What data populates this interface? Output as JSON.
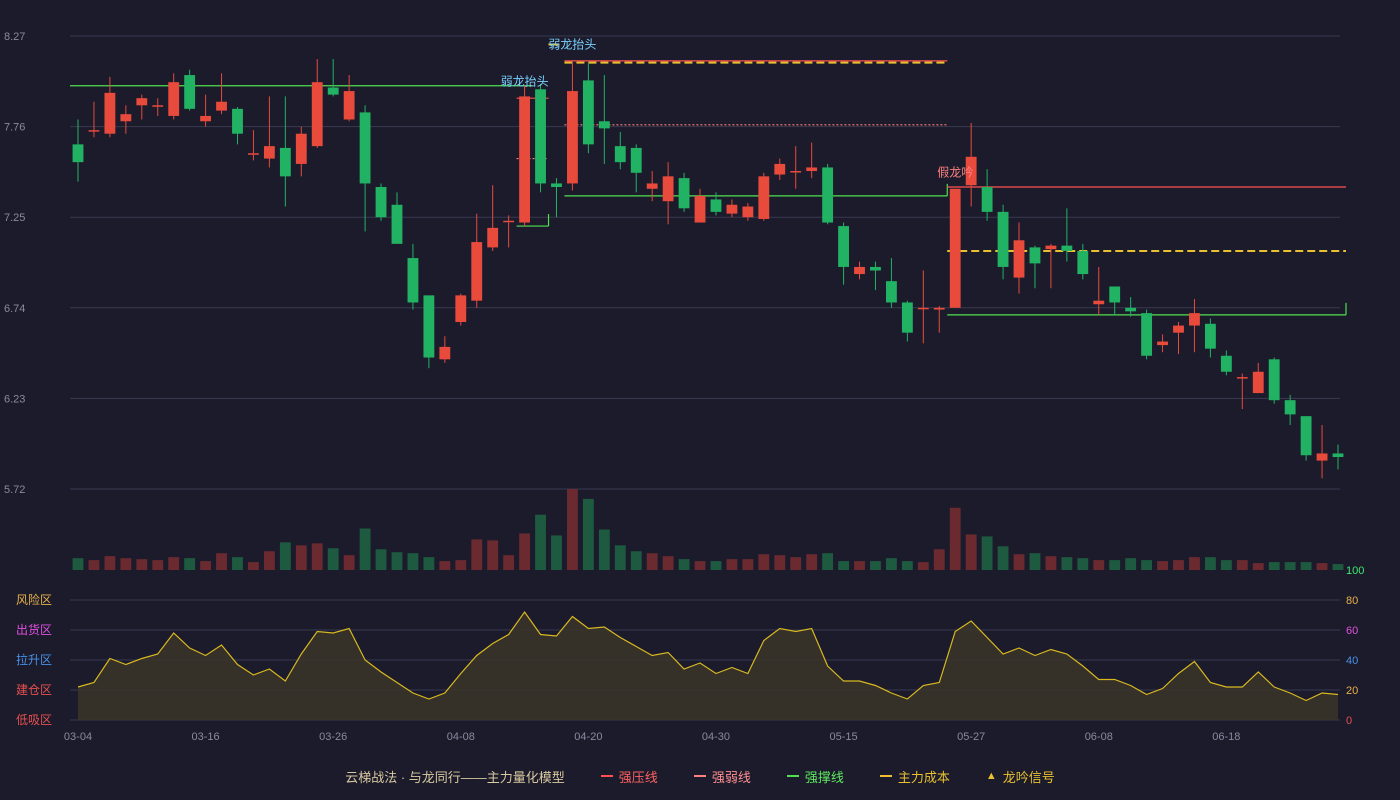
{
  "chart_data": {
    "type": "candlestick",
    "y_ticks": [
      "8.27",
      "7.76",
      "7.25",
      "6.74",
      "6.23",
      "5.72"
    ],
    "ylim": [
      5.72,
      8.27
    ],
    "x_ticks": [
      {
        "i": 0,
        "label": "03-04"
      },
      {
        "i": 8,
        "label": "03-16"
      },
      {
        "i": 16,
        "label": "03-26"
      },
      {
        "i": 24,
        "label": "04-08"
      },
      {
        "i": 32,
        "label": "04-20"
      },
      {
        "i": 40,
        "label": "04-30"
      },
      {
        "i": 48,
        "label": "05-15"
      },
      {
        "i": 56,
        "label": "05-27"
      },
      {
        "i": 64,
        "label": "06-08"
      },
      {
        "i": 72,
        "label": "06-18"
      }
    ],
    "candles": [
      [
        7.66,
        7.56,
        7.8,
        7.45
      ],
      [
        7.74,
        7.74,
        7.9,
        7.7
      ],
      [
        7.72,
        7.95,
        8.04,
        7.7
      ],
      [
        7.79,
        7.83,
        7.88,
        7.72
      ],
      [
        7.88,
        7.92,
        7.94,
        7.8
      ],
      [
        7.88,
        7.88,
        7.92,
        7.82
      ],
      [
        7.82,
        8.01,
        8.06,
        7.8
      ],
      [
        8.05,
        7.86,
        8.08,
        7.85
      ],
      [
        7.79,
        7.82,
        7.94,
        7.76
      ],
      [
        7.85,
        7.9,
        8.06,
        7.83
      ],
      [
        7.86,
        7.72,
        7.87,
        7.66
      ],
      [
        7.61,
        7.61,
        7.74,
        7.57
      ],
      [
        7.58,
        7.65,
        7.93,
        7.53
      ],
      [
        7.64,
        7.48,
        7.93,
        7.31
      ],
      [
        7.55,
        7.72,
        7.76,
        7.48
      ],
      [
        7.65,
        8.01,
        8.14,
        7.64
      ],
      [
        7.98,
        7.94,
        8.14,
        7.93
      ],
      [
        7.8,
        7.96,
        8.05,
        7.79
      ],
      [
        7.84,
        7.44,
        7.88,
        7.17
      ],
      [
        7.42,
        7.25,
        7.44,
        7.23
      ],
      [
        7.32,
        7.1,
        7.39,
        7.1
      ],
      [
        7.02,
        6.77,
        7.1,
        6.73
      ],
      [
        6.81,
        6.46,
        6.81,
        6.4
      ],
      [
        6.45,
        6.52,
        6.58,
        6.43
      ],
      [
        6.66,
        6.81,
        6.82,
        6.64
      ],
      [
        6.78,
        7.11,
        7.27,
        6.74
      ],
      [
        7.08,
        7.19,
        7.43,
        7.06
      ],
      [
        7.23,
        7.23,
        7.26,
        7.08
      ],
      [
        7.22,
        7.93,
        7.99,
        7.2
      ],
      [
        7.97,
        7.44,
        8.0,
        7.39
      ],
      [
        7.44,
        7.42,
        7.47,
        7.25
      ],
      [
        7.44,
        7.96,
        8.12,
        7.4
      ],
      [
        8.02,
        7.66,
        8.12,
        7.61
      ],
      [
        7.79,
        7.75,
        8.05,
        7.55
      ],
      [
        7.65,
        7.56,
        7.73,
        7.52
      ],
      [
        7.64,
        7.5,
        7.66,
        7.39
      ],
      [
        7.41,
        7.44,
        7.51,
        7.34
      ],
      [
        7.34,
        7.48,
        7.56,
        7.21
      ],
      [
        7.47,
        7.3,
        7.5,
        7.28
      ],
      [
        7.22,
        7.37,
        7.41,
        7.22
      ],
      [
        7.35,
        7.28,
        7.39,
        7.26
      ],
      [
        7.27,
        7.32,
        7.35,
        7.25
      ],
      [
        7.25,
        7.31,
        7.33,
        7.23
      ],
      [
        7.24,
        7.48,
        7.5,
        7.23
      ],
      [
        7.49,
        7.55,
        7.58,
        7.46
      ],
      [
        7.51,
        7.51,
        7.65,
        7.41
      ],
      [
        7.51,
        7.53,
        7.67,
        7.47
      ],
      [
        7.53,
        7.22,
        7.55,
        7.21
      ],
      [
        7.2,
        6.97,
        7.22,
        6.87
      ],
      [
        6.93,
        6.97,
        7.0,
        6.9
      ],
      [
        6.97,
        6.95,
        7.0,
        6.84
      ],
      [
        6.89,
        6.77,
        7.02,
        6.74
      ],
      [
        6.77,
        6.6,
        6.78,
        6.55
      ],
      [
        6.74,
        6.74,
        6.95,
        6.54
      ],
      [
        6.73,
        6.74,
        6.75,
        6.6
      ],
      [
        6.74,
        7.41,
        7.41,
        6.74
      ],
      [
        7.43,
        7.59,
        7.78,
        7.31
      ],
      [
        7.42,
        7.28,
        7.52,
        7.23
      ],
      [
        7.28,
        6.97,
        7.32,
        6.9
      ],
      [
        6.91,
        7.12,
        7.22,
        6.82
      ],
      [
        7.08,
        6.99,
        7.09,
        6.85
      ],
      [
        7.07,
        7.09,
        7.1,
        6.85
      ],
      [
        7.09,
        7.06,
        7.3,
        7.0
      ],
      [
        7.06,
        6.93,
        7.1,
        6.9
      ],
      [
        6.76,
        6.78,
        6.97,
        6.7
      ],
      [
        6.86,
        6.77,
        6.85,
        6.7
      ],
      [
        6.74,
        6.72,
        6.8,
        6.69
      ],
      [
        6.71,
        6.47,
        6.73,
        6.45
      ],
      [
        6.53,
        6.55,
        6.59,
        6.49
      ],
      [
        6.6,
        6.64,
        6.66,
        6.48
      ],
      [
        6.64,
        6.71,
        6.79,
        6.49
      ],
      [
        6.65,
        6.51,
        6.68,
        6.46
      ],
      [
        6.47,
        6.38,
        6.5,
        6.36
      ],
      [
        6.35,
        6.35,
        6.37,
        6.17
      ],
      [
        6.26,
        6.38,
        6.43,
        6.26
      ],
      [
        6.45,
        6.22,
        6.46,
        6.2
      ],
      [
        6.22,
        6.14,
        6.25,
        6.08
      ],
      [
        6.13,
        5.91,
        6.13,
        5.88
      ],
      [
        5.88,
        5.92,
        6.08,
        5.78
      ],
      [
        5.92,
        5.9,
        5.97,
        5.83
      ]
    ],
    "volume": [
      12,
      10,
      14,
      12,
      11,
      10,
      13,
      12,
      9,
      17,
      13,
      8,
      19,
      28,
      25,
      27,
      22,
      15,
      42,
      21,
      18,
      17,
      13,
      9,
      10,
      31,
      30,
      15,
      37,
      56,
      35,
      82,
      72,
      41,
      25,
      19,
      17,
      14,
      11,
      9,
      9,
      11,
      11,
      16,
      15,
      13,
      16,
      17,
      9,
      9,
      9,
      12,
      9,
      8,
      21,
      63,
      36,
      34,
      24,
      16,
      17,
      14,
      13,
      12,
      10,
      10,
      12,
      10,
      9,
      10,
      13,
      13,
      10,
      10,
      7,
      8,
      8,
      8,
      7,
      6
    ],
    "volume_max_label": "100",
    "indicator": [
      22,
      25,
      41,
      37,
      41,
      44,
      58,
      48,
      43,
      50,
      37,
      30,
      34,
      26,
      44,
      59,
      58,
      61,
      40,
      32,
      25,
      18,
      14,
      18,
      31,
      43,
      51,
      57,
      72,
      57,
      56,
      69,
      61,
      62,
      55,
      49,
      43,
      45,
      34,
      38,
      31,
      35,
      31,
      53,
      61,
      59,
      61,
      36,
      26,
      26,
      23,
      18,
      14,
      23,
      25,
      59,
      66,
      55,
      44,
      48,
      43,
      47,
      44,
      36,
      27,
      27,
      23,
      17,
      21,
      31,
      39,
      25,
      22,
      22,
      32,
      22,
      18,
      13,
      18,
      17
    ],
    "indicator_ticks": [
      "100",
      "80",
      "60",
      "40",
      "20",
      "0"
    ],
    "zones": [
      "风险区",
      "出货区",
      "拉升区",
      "建仓区",
      "低吸区"
    ],
    "zone_colors": [
      "#e8b04a",
      "#e050e0",
      "#4a90e8",
      "#e85050",
      "#e85050"
    ],
    "tick_colors": [
      "#3fe870",
      "#e8b04a",
      "#e050e0",
      "#4a90e8",
      "#e8b04a",
      "#e85050"
    ],
    "lines": [
      {
        "kind": "support",
        "y": 7.99,
        "from": 0,
        "to": 28
      },
      {
        "kind": "pressure",
        "y": 7.92,
        "from": 28,
        "to": 29
      },
      {
        "kind": "weak",
        "y": 7.58,
        "from": 28,
        "to": 29
      },
      {
        "kind": "support_bracket",
        "y": 7.2,
        "from": 28,
        "to": 29
      },
      {
        "kind": "pressure",
        "y": 8.13,
        "from": 31,
        "to": 54
      },
      {
        "kind": "cost",
        "y": 8.12,
        "from": 31,
        "to": 54
      },
      {
        "kind": "weak",
        "y": 7.77,
        "from": 31,
        "to": 54
      },
      {
        "kind": "support",
        "y": 7.37,
        "from": 31,
        "to": 54
      },
      {
        "kind": "pressure",
        "y": 7.42,
        "from": 55,
        "to": 79
      },
      {
        "kind": "cost",
        "y": 7.06,
        "from": 55,
        "to": 79
      },
      {
        "kind": "support",
        "y": 6.7,
        "from": 55,
        "to": 79
      }
    ],
    "signals": [
      {
        "text": "弱龙抬头",
        "i": 28,
        "y": 7.99,
        "color": "#7ad0ff"
      },
      {
        "text": "弱龙抬头",
        "i": 31,
        "y": 8.2,
        "color": "#7ad0ff",
        "marker": true
      },
      {
        "text": "假龙吟",
        "i": 55,
        "y": 7.48,
        "color": "#ff8080"
      }
    ],
    "colors": {
      "up": "#e84a3c",
      "down": "#21b363",
      "pressure": "#ff5050",
      "weak": "#ff8080",
      "support": "#50e050",
      "cost": "#e8c030",
      "indicator": "#d8b820",
      "grid": "#3a3a50",
      "axis_text": "#8a8aa0"
    }
  },
  "legend": {
    "title": "云梯战法 · 与龙同行——主力量化模型",
    "pressure": "强压线",
    "weak": "强弱线",
    "support": "强撑线",
    "cost": "主力成本",
    "signal": "龙吟信号"
  }
}
